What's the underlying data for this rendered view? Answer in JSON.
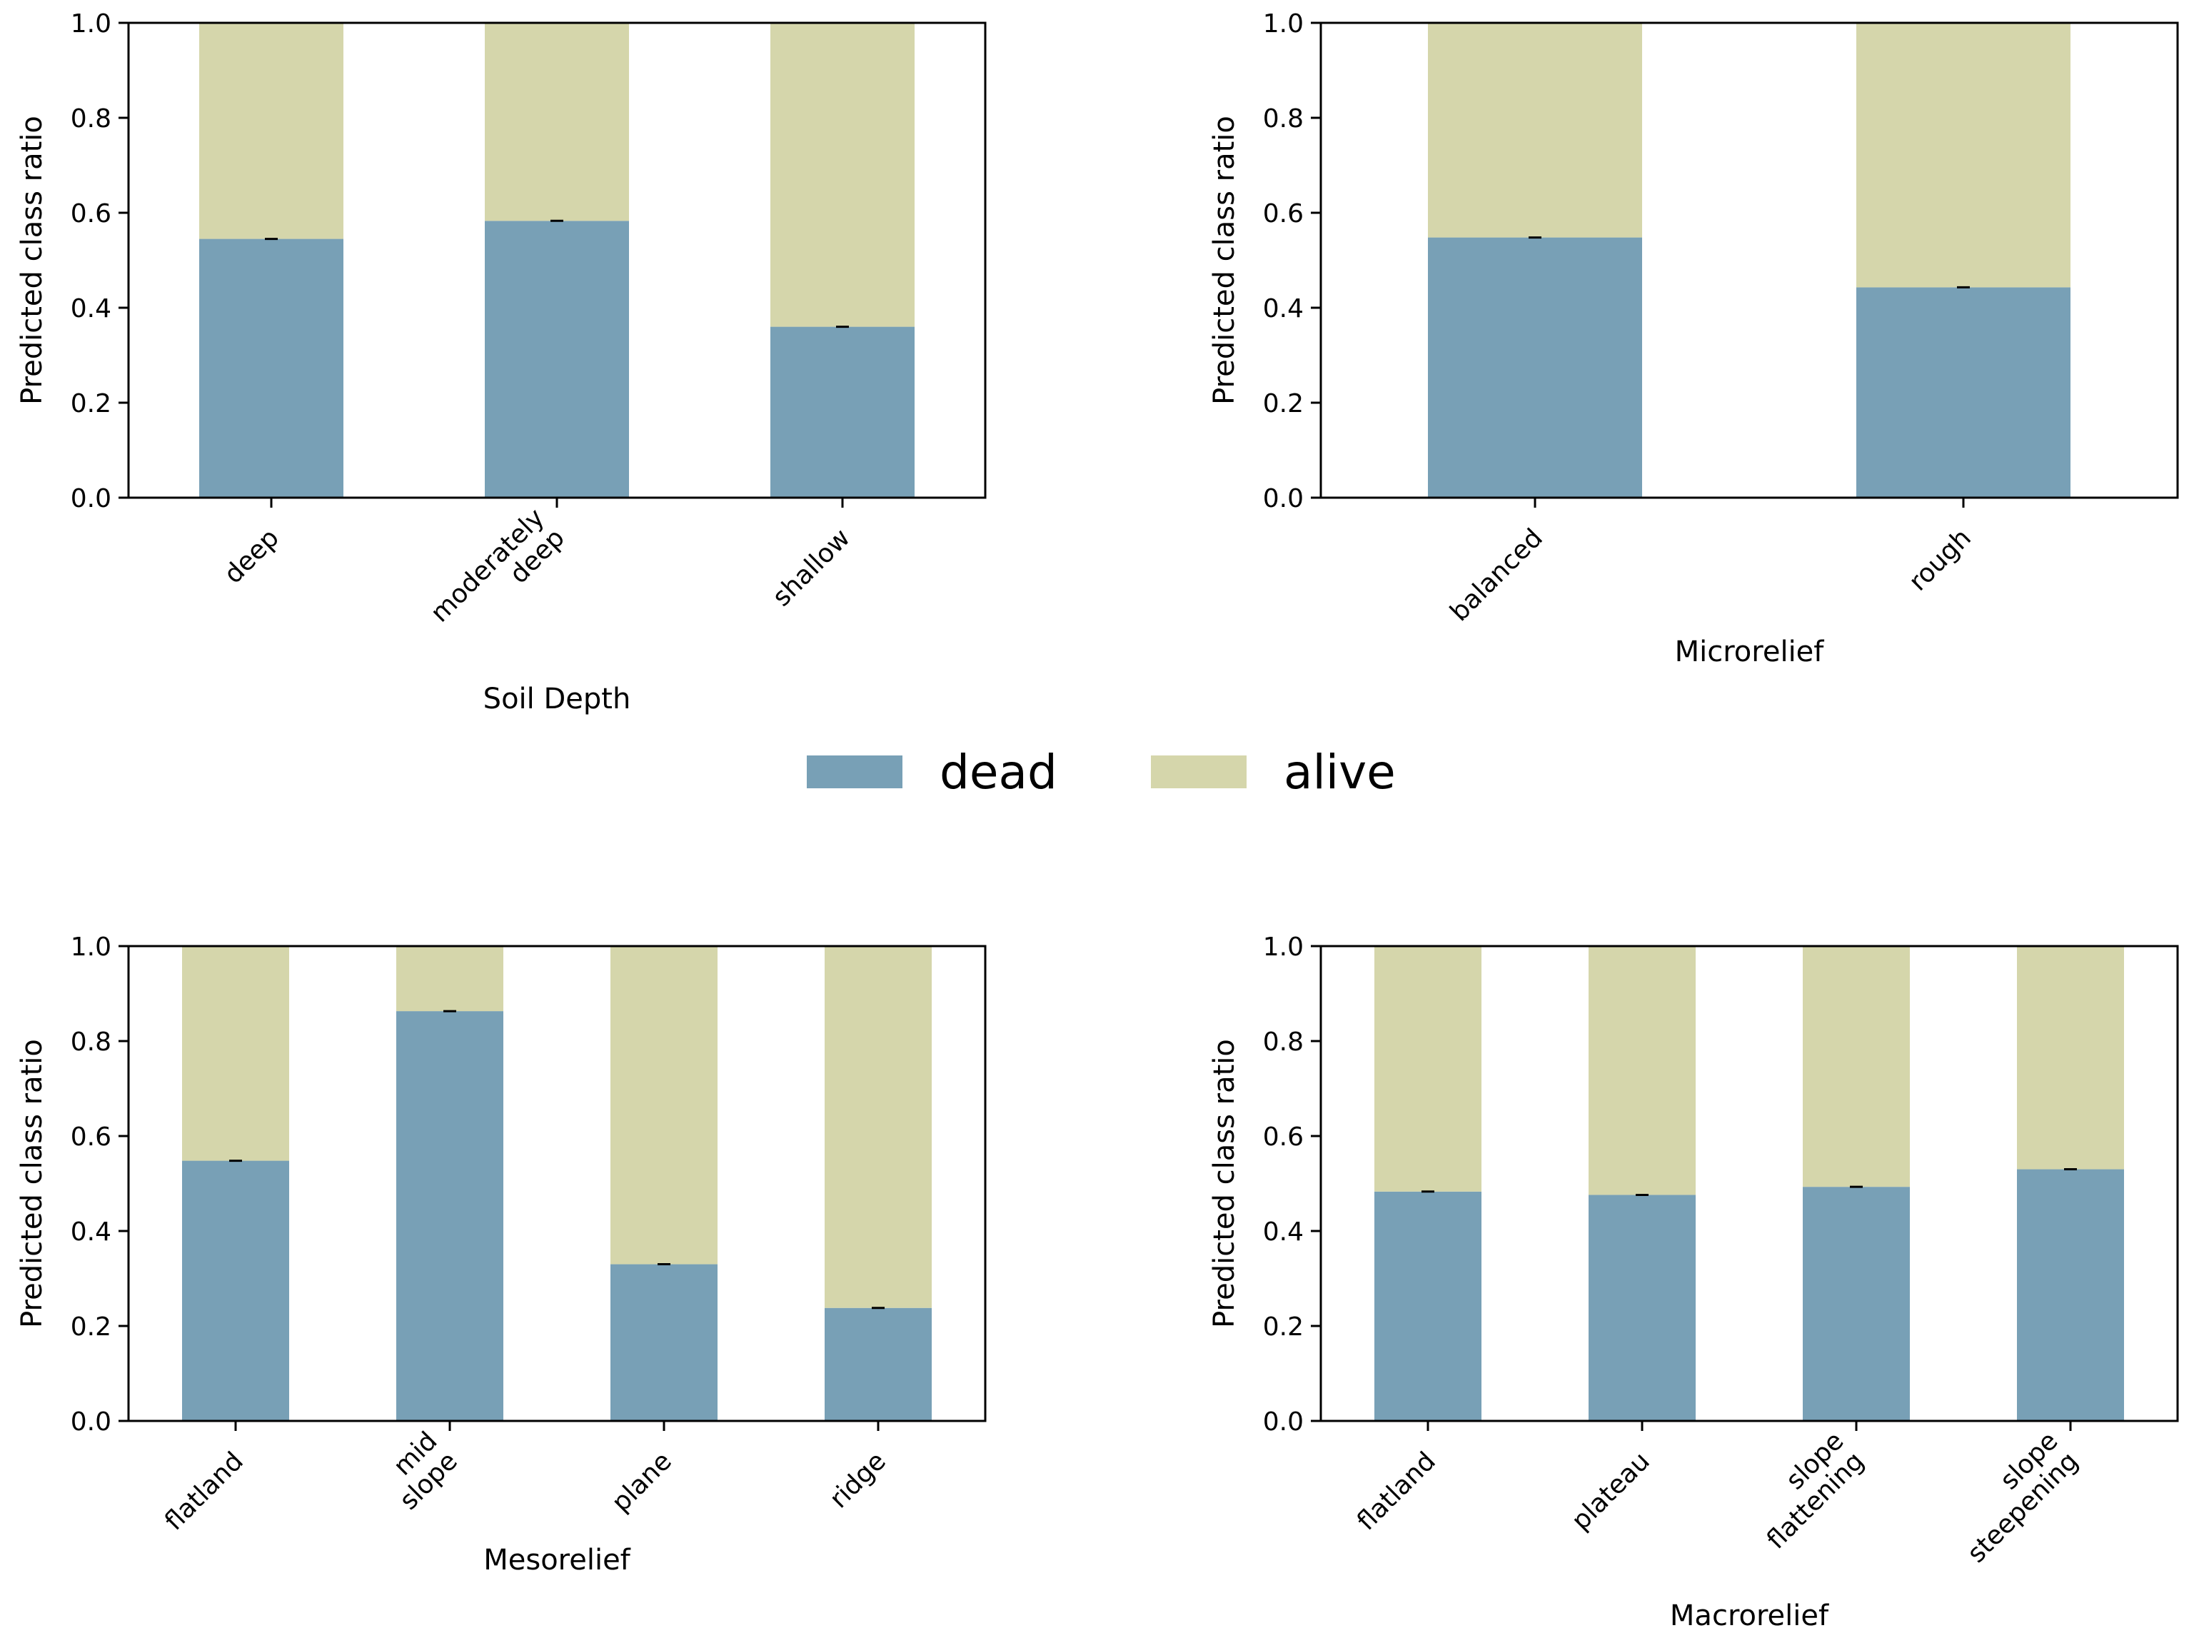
{
  "colors": {
    "dead": "#78a0b6",
    "alive": "#d5d6ab",
    "axis": "#000000"
  },
  "legend": {
    "items": [
      {
        "key": "dead",
        "label": "dead"
      },
      {
        "key": "alive",
        "label": "alive"
      }
    ]
  },
  "chart_data": [
    {
      "type": "bar",
      "stacked": true,
      "title": "",
      "xlabel": "Soil Depth",
      "ylabel": "Predicted class ratio",
      "ylim": [
        0,
        1
      ],
      "yticks": [
        "0.0",
        "0.2",
        "0.4",
        "0.6",
        "0.8",
        "1.0"
      ],
      "categories": [
        [
          "deep"
        ],
        [
          "moderately",
          "deep"
        ],
        [
          "shallow"
        ]
      ],
      "series": [
        {
          "name": "dead",
          "values": [
            0.545,
            0.583,
            0.36
          ]
        },
        {
          "name": "alive",
          "values": [
            0.455,
            0.417,
            0.64
          ]
        }
      ]
    },
    {
      "type": "bar",
      "stacked": true,
      "title": "",
      "xlabel": "Microrelief",
      "ylabel": "Predicted class ratio",
      "ylim": [
        0,
        1
      ],
      "yticks": [
        "0.0",
        "0.2",
        "0.4",
        "0.6",
        "0.8",
        "1.0"
      ],
      "categories": [
        [
          "balanced"
        ],
        [
          "rough"
        ]
      ],
      "series": [
        {
          "name": "dead",
          "values": [
            0.548,
            0.443
          ]
        },
        {
          "name": "alive",
          "values": [
            0.452,
            0.557
          ]
        }
      ]
    },
    {
      "type": "bar",
      "stacked": true,
      "title": "",
      "xlabel": "Mesorelief",
      "ylabel": "Predicted class ratio",
      "ylim": [
        0,
        1
      ],
      "yticks": [
        "0.0",
        "0.2",
        "0.4",
        "0.6",
        "0.8",
        "1.0"
      ],
      "categories": [
        [
          "flatland"
        ],
        [
          "mid",
          "slope"
        ],
        [
          "plane"
        ],
        [
          "ridge"
        ]
      ],
      "series": [
        {
          "name": "dead",
          "values": [
            0.548,
            0.863,
            0.33,
            0.238
          ]
        },
        {
          "name": "alive",
          "values": [
            0.452,
            0.137,
            0.67,
            0.762
          ]
        }
      ]
    },
    {
      "type": "bar",
      "stacked": true,
      "title": "",
      "xlabel": "Macrorelief",
      "ylabel": "Predicted class ratio",
      "ylim": [
        0,
        1
      ],
      "yticks": [
        "0.0",
        "0.2",
        "0.4",
        "0.6",
        "0.8",
        "1.0"
      ],
      "categories": [
        [
          "flatland"
        ],
        [
          "plateau"
        ],
        [
          "slope",
          "flattening"
        ],
        [
          "slope",
          "steepening"
        ]
      ],
      "series": [
        {
          "name": "dead",
          "values": [
            0.483,
            0.476,
            0.493,
            0.53
          ]
        },
        {
          "name": "alive",
          "values": [
            0.517,
            0.524,
            0.507,
            0.47
          ]
        }
      ]
    }
  ]
}
